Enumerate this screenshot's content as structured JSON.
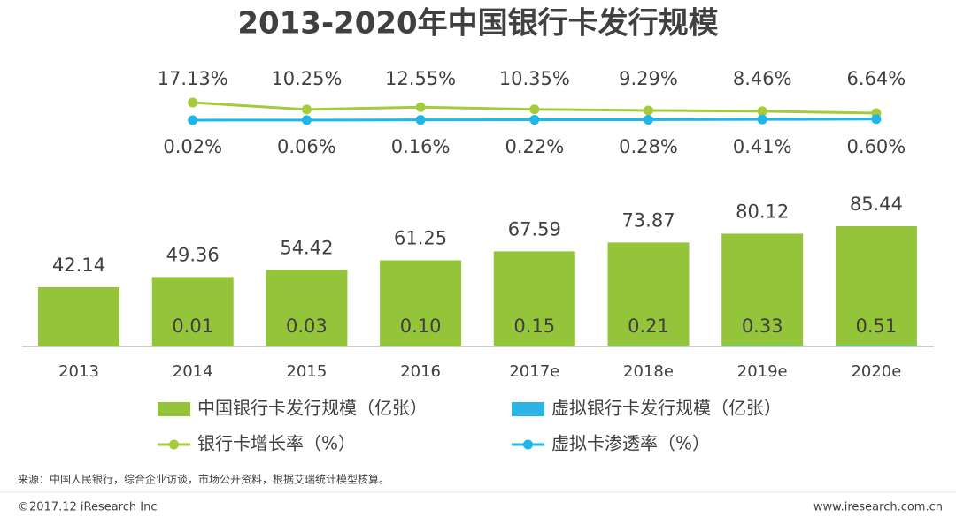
{
  "chart_data": {
    "type": "bar",
    "title": "2013-2020年中国银行卡发行规模",
    "categories": [
      "2013",
      "2014",
      "2015",
      "2016",
      "2017e",
      "2018e",
      "2019e",
      "2020e"
    ],
    "series": [
      {
        "name": "中国银行卡发行规模（亿张）",
        "type": "bar",
        "color": "#94c43a",
        "values": [
          42.14,
          49.36,
          54.42,
          61.25,
          67.59,
          73.87,
          80.12,
          85.44
        ]
      },
      {
        "name": "虚拟银行卡发行规模（亿张）",
        "type": "bar",
        "color": "#2bb5e6",
        "values": [
          null,
          0.01,
          0.03,
          0.1,
          0.15,
          0.21,
          0.33,
          0.51
        ],
        "value_labels": [
          null,
          "0.01",
          "0.03",
          "0.10",
          "0.15",
          "0.21",
          "0.33",
          "0.51"
        ]
      },
      {
        "name": "银行卡增长率（%）",
        "type": "line",
        "color": "#a5cb3a",
        "values": [
          null,
          17.13,
          10.25,
          12.55,
          10.35,
          9.29,
          8.46,
          6.64
        ],
        "value_labels": [
          null,
          "17.13%",
          "10.25%",
          "12.55%",
          "10.35%",
          "9.29%",
          "8.46%",
          "6.64%"
        ]
      },
      {
        "name": "虚拟卡渗透率（%）",
        "type": "line",
        "color": "#1fb6e8",
        "values": [
          null,
          0.02,
          0.06,
          0.16,
          0.22,
          0.28,
          0.41,
          0.6
        ],
        "value_labels": [
          null,
          "0.02%",
          "0.06%",
          "0.16%",
          "0.22%",
          "0.28%",
          "0.41%",
          "0.60%"
        ]
      }
    ]
  },
  "footer": {
    "source": "来源：中国人民银行，综合企业访谈，市场公开资料，根据艾瑞统计模型核算。",
    "copyright": "©2017.12 iResearch Inc",
    "website": "www.iresearch.com.cn"
  }
}
